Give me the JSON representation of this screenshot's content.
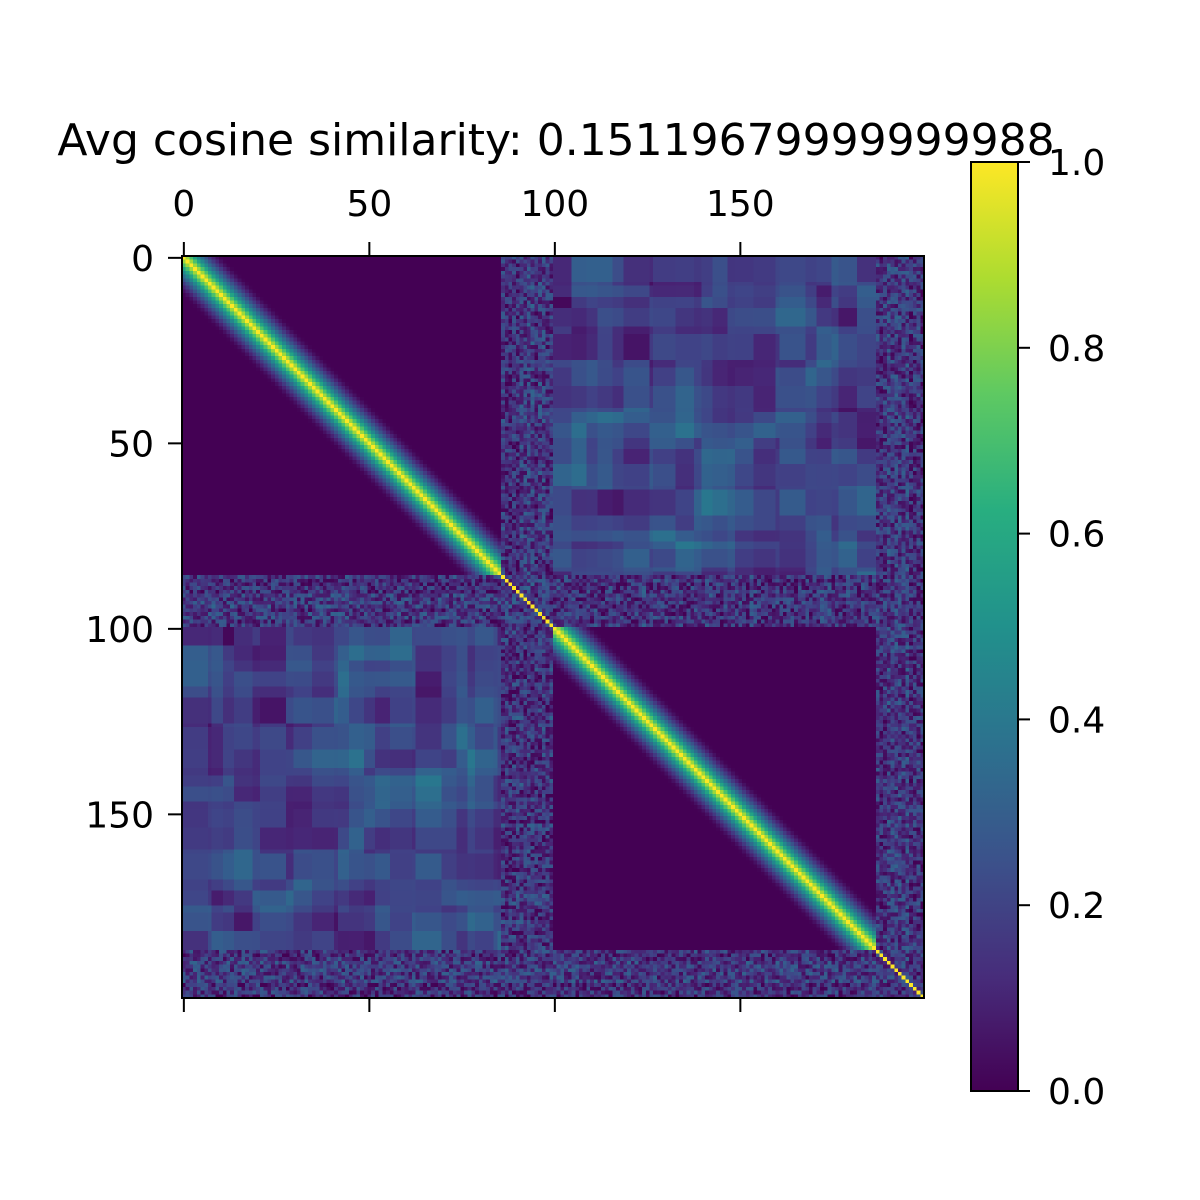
{
  "chart_data": {
    "type": "heatmap",
    "title": "Avg cosine similarity: 0.15119679999999988",
    "matrix_size": 200,
    "colormap": "viridis",
    "colormap_stops": [
      "#440154",
      "#3b528b",
      "#21918c",
      "#5ec962",
      "#fde725"
    ],
    "x_axis": {
      "position": "top",
      "ticks": [
        0,
        50,
        100,
        150
      ],
      "tick_labels": [
        "0",
        "50",
        "100",
        "150"
      ],
      "range": [
        -0.5,
        199.5
      ]
    },
    "y_axis": {
      "ticks": [
        0,
        50,
        100,
        150
      ],
      "tick_labels": [
        "0",
        "50",
        "100",
        "150"
      ],
      "range": [
        -0.5,
        199.5
      ],
      "inverted": true
    },
    "colorbar": {
      "range": [
        0.0,
        1.0
      ],
      "ticks": [
        0.0,
        0.2,
        0.4,
        0.6,
        0.8,
        1.0
      ],
      "tick_labels": [
        "0.0",
        "0.2",
        "0.4",
        "0.6",
        "0.8",
        "1.0"
      ]
    },
    "structure": {
      "group_a": [
        0,
        85
      ],
      "group_a_noise": [
        86,
        99
      ],
      "group_b": [
        100,
        186
      ],
      "group_b_noise": [
        187,
        199
      ],
      "within_group_diagonal_band_halfwidth": 10,
      "within_group_offdiag_value": 0.0,
      "between_group_typical_value": 0.2,
      "noise_band_typical_value": 0.15,
      "diagonal_value": 1.0
    }
  }
}
